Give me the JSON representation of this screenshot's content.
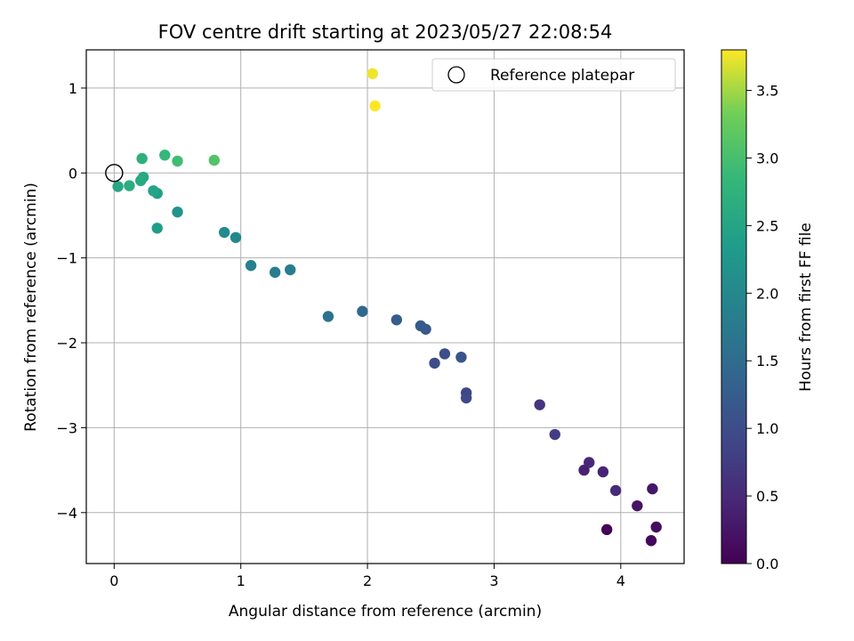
{
  "chart_data": {
    "type": "scatter",
    "title": "FOV centre drift starting at 2023/05/27 22:08:54",
    "xlabel": "Angular distance from reference (arcmin)",
    "ylabel": "Rotation from reference (arcmin)",
    "xlim": [
      -0.22,
      4.5
    ],
    "ylim": [
      -4.6,
      1.45
    ],
    "xticks": [
      0,
      1,
      2,
      3,
      4
    ],
    "yticks": [
      -4,
      -3,
      -2,
      -1,
      0,
      1
    ],
    "xtick_labels": [
      "0",
      "1",
      "2",
      "3",
      "4"
    ],
    "ytick_labels": [
      "−4",
      "−3",
      "−2",
      "−1",
      "0",
      "1"
    ],
    "grid": true,
    "legend": {
      "placement": "top-right",
      "entries": [
        "Reference platepar"
      ]
    },
    "reference_point": {
      "x": 0,
      "y": 0
    },
    "colorbar": {
      "label": "Hours from first FF file",
      "colormap": "viridis",
      "range": [
        0,
        3.8
      ],
      "ticks": [
        0.0,
        0.5,
        1.0,
        1.5,
        2.0,
        2.5,
        3.0,
        3.5
      ],
      "tick_labels": [
        "0.0",
        "0.5",
        "1.0",
        "1.5",
        "2.0",
        "2.5",
        "3.0",
        "3.5"
      ]
    },
    "points": [
      {
        "x": 3.89,
        "y": -4.2,
        "t": 0.03
      },
      {
        "x": 4.24,
        "y": -4.33,
        "t": 0.07
      },
      {
        "x": 4.28,
        "y": -4.17,
        "t": 0.12
      },
      {
        "x": 4.13,
        "y": -3.92,
        "t": 0.22
      },
      {
        "x": 4.25,
        "y": -3.72,
        "t": 0.27
      },
      {
        "x": 3.71,
        "y": -3.5,
        "t": 0.4
      },
      {
        "x": 3.86,
        "y": -3.52,
        "t": 0.43
      },
      {
        "x": 3.75,
        "y": -3.41,
        "t": 0.48
      },
      {
        "x": 3.96,
        "y": -3.74,
        "t": 0.52
      },
      {
        "x": 3.36,
        "y": -2.73,
        "t": 0.65
      },
      {
        "x": 3.48,
        "y": -3.08,
        "t": 0.78
      },
      {
        "x": 2.78,
        "y": -2.59,
        "t": 0.9
      },
      {
        "x": 2.78,
        "y": -2.65,
        "t": 0.95
      },
      {
        "x": 2.53,
        "y": -2.24,
        "t": 1.0
      },
      {
        "x": 2.61,
        "y": -2.13,
        "t": 1.05
      },
      {
        "x": 2.74,
        "y": -2.17,
        "t": 1.1
      },
      {
        "x": 2.46,
        "y": -1.84,
        "t": 1.15
      },
      {
        "x": 2.42,
        "y": -1.8,
        "t": 1.2
      },
      {
        "x": 2.23,
        "y": -1.73,
        "t": 1.25
      },
      {
        "x": 1.96,
        "y": -1.63,
        "t": 1.45
      },
      {
        "x": 1.69,
        "y": -1.69,
        "t": 1.6
      },
      {
        "x": 1.39,
        "y": -1.14,
        "t": 1.8
      },
      {
        "x": 1.27,
        "y": -1.17,
        "t": 1.83
      },
      {
        "x": 1.08,
        "y": -1.09,
        "t": 1.88
      },
      {
        "x": 0.96,
        "y": -0.76,
        "t": 1.98
      },
      {
        "x": 0.87,
        "y": -0.7,
        "t": 2.03
      },
      {
        "x": 0.5,
        "y": -0.46,
        "t": 2.2
      },
      {
        "x": 0.34,
        "y": -0.65,
        "t": 2.35
      },
      {
        "x": 0.34,
        "y": -0.24,
        "t": 2.4
      },
      {
        "x": 0.31,
        "y": -0.21,
        "t": 2.5
      },
      {
        "x": 0.23,
        "y": -0.05,
        "t": 2.55
      },
      {
        "x": 0.21,
        "y": -0.09,
        "t": 2.6
      },
      {
        "x": 0.12,
        "y": -0.15,
        "t": 2.65
      },
      {
        "x": 0.03,
        "y": -0.16,
        "t": 2.55
      },
      {
        "x": 0.22,
        "y": 0.17,
        "t": 2.7
      },
      {
        "x": 0.4,
        "y": 0.21,
        "t": 2.85
      },
      {
        "x": 0.5,
        "y": 0.14,
        "t": 2.95
      },
      {
        "x": 0.79,
        "y": 0.15,
        "t": 3.1
      },
      {
        "x": 2.04,
        "y": 1.17,
        "t": 3.75
      },
      {
        "x": 2.06,
        "y": 0.79,
        "t": 3.8
      }
    ]
  }
}
